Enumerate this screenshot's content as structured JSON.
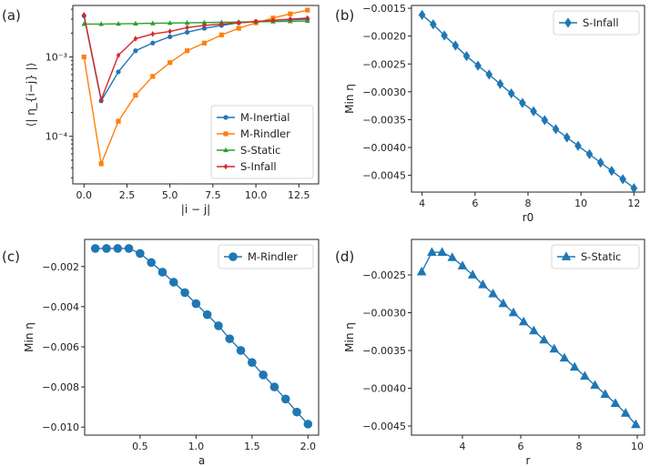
{
  "chart_data": [
    {
      "id": "a",
      "panel_label": "(a)",
      "type": "line",
      "yscale": "log",
      "xlabel": "|i − j|",
      "ylabel": "⟨| η_{i−j} |⟩",
      "xlim": [
        -0.65,
        13.65
      ],
      "ylim_log10": [
        -4.6,
        -2.35
      ],
      "xticks": [
        0.0,
        2.5,
        5.0,
        7.5,
        10.0,
        12.5
      ],
      "xtick_labels": [
        "0.0",
        "2.5",
        "5.0",
        "7.5",
        "10.0",
        "12.5"
      ],
      "yticks_log10": [
        -4,
        -3
      ],
      "ytick_labels": [
        "10⁻⁴",
        "10⁻³"
      ],
      "legend_loc": "lower-right",
      "x": [
        0,
        1,
        2,
        3,
        4,
        5,
        6,
        7,
        8,
        9,
        10,
        11,
        12,
        13
      ],
      "series": [
        {
          "name": "M-Inertial",
          "color": "#1f77b4",
          "marker": "circle",
          "values": [
            0.0033,
            0.00028,
            0.00065,
            0.0012,
            0.0015,
            0.0018,
            0.00205,
            0.0023,
            0.0025,
            0.0027,
            0.0028,
            0.0029,
            0.00295,
            0.003
          ]
        },
        {
          "name": "M-Rindler",
          "color": "#ff7f0e",
          "marker": "square",
          "values": [
            0.001,
            4.5e-05,
            0.000155,
            0.00033,
            0.00057,
            0.00085,
            0.0012,
            0.0015,
            0.0019,
            0.0023,
            0.0027,
            0.0031,
            0.0035,
            0.0039
          ]
        },
        {
          "name": "S-Static",
          "color": "#2ca02c",
          "marker": "triangle",
          "values": [
            0.0026,
            0.0026,
            0.00262,
            0.00264,
            0.00266,
            0.00268,
            0.0027,
            0.00272,
            0.00274,
            0.00276,
            0.00278,
            0.0028,
            0.00282,
            0.00285
          ]
        },
        {
          "name": "S-Infall",
          "color": "#d62728",
          "marker": "diamond",
          "values": [
            0.0034,
            0.00029,
            0.00105,
            0.0017,
            0.00195,
            0.0021,
            0.00235,
            0.0025,
            0.0026,
            0.0027,
            0.0028,
            0.0029,
            0.003,
            0.0031
          ]
        }
      ]
    },
    {
      "id": "b",
      "panel_label": "(b)",
      "type": "line",
      "xlabel": "r0",
      "ylabel": "Min η",
      "xlim": [
        3.6,
        12.4
      ],
      "ylim": [
        -0.0048,
        -0.00145
      ],
      "xticks": [
        4,
        6,
        8,
        10,
        12
      ],
      "xtick_labels": [
        "4",
        "6",
        "8",
        "10",
        "12"
      ],
      "yticks": [
        -0.0045,
        -0.004,
        -0.0035,
        -0.003,
        -0.0025,
        -0.002,
        -0.0015
      ],
      "ytick_labels": [
        "−0.0045",
        "−0.0040",
        "−0.0035",
        "−0.0030",
        "−0.0025",
        "−0.0020",
        "−0.0015"
      ],
      "legend_loc": "upper-right",
      "series": [
        {
          "name": "S-Infall",
          "color": "#1f77b4",
          "marker": "diamond",
          "x": [
            4.0,
            4.42,
            4.84,
            5.26,
            5.68,
            6.11,
            6.53,
            6.95,
            7.37,
            7.79,
            8.21,
            8.63,
            9.05,
            9.47,
            9.89,
            10.32,
            10.74,
            11.16,
            11.58,
            12.0
          ],
          "values": [
            -0.00162,
            -0.00179,
            -0.00199,
            -0.00217,
            -0.00236,
            -0.00253,
            -0.00269,
            -0.00286,
            -0.00303,
            -0.0032,
            -0.00335,
            -0.00351,
            -0.00367,
            -0.00382,
            -0.00397,
            -0.00412,
            -0.00427,
            -0.00442,
            -0.00457,
            -0.00473
          ]
        }
      ]
    },
    {
      "id": "c",
      "panel_label": "(c)",
      "type": "line",
      "xlabel": "a",
      "ylabel": "Min η",
      "xlim": [
        0.005,
        2.095
      ],
      "ylim": [
        -0.0104,
        -0.00065
      ],
      "xticks": [
        0.5,
        1.0,
        1.5,
        2.0
      ],
      "xtick_labels": [
        "0.5",
        "1.0",
        "1.5",
        "2.0"
      ],
      "yticks": [
        -0.01,
        -0.008,
        -0.006,
        -0.004,
        -0.002
      ],
      "ytick_labels": [
        "−0.010",
        "−0.008",
        "−0.006",
        "−0.004",
        "−0.002"
      ],
      "legend_loc": "upper-right",
      "series": [
        {
          "name": "M-Rindler",
          "color": "#1f77b4",
          "marker": "circle",
          "x": [
            0.1,
            0.2,
            0.3,
            0.4,
            0.5,
            0.6,
            0.7,
            0.8,
            0.9,
            1.0,
            1.1,
            1.2,
            1.3,
            1.4,
            1.5,
            1.6,
            1.7,
            1.8,
            1.9,
            2.0
          ],
          "values": [
            -0.0011,
            -0.0011,
            -0.0011,
            -0.0011,
            -0.00135,
            -0.0018,
            -0.00228,
            -0.00278,
            -0.0033,
            -0.00385,
            -0.0044,
            -0.00495,
            -0.0056,
            -0.00618,
            -0.00678,
            -0.0074,
            -0.008,
            -0.0086,
            -0.00925,
            -0.00985
          ]
        }
      ]
    },
    {
      "id": "d",
      "panel_label": "(d)",
      "type": "line",
      "xlabel": "r",
      "ylabel": "Min η",
      "xlim": [
        2.25,
        10.25
      ],
      "ylim": [
        -0.00462,
        -0.00203
      ],
      "xticks": [
        4,
        6,
        8,
        10
      ],
      "xtick_labels": [
        "4",
        "6",
        "8",
        "10"
      ],
      "yticks": [
        -0.0045,
        -0.004,
        -0.0035,
        -0.003,
        -0.0025
      ],
      "ytick_labels": [
        "−0.0045",
        "−0.0040",
        "−0.0035",
        "−0.0030",
        "−0.0025"
      ],
      "legend_loc": "upper-right",
      "series": [
        {
          "name": "S-Static",
          "color": "#1f77b4",
          "marker": "triangle",
          "x": [
            2.6,
            2.95,
            3.3,
            3.65,
            4.0,
            4.35,
            4.7,
            5.05,
            5.4,
            5.75,
            6.1,
            6.45,
            6.8,
            7.15,
            7.5,
            7.85,
            8.2,
            8.55,
            8.9,
            9.25,
            9.6,
            9.95
          ],
          "values": [
            -0.00246,
            -0.0022,
            -0.0022,
            -0.00227,
            -0.00238,
            -0.0025,
            -0.00263,
            -0.00275,
            -0.00288,
            -0.003,
            -0.00312,
            -0.00324,
            -0.00336,
            -0.00348,
            -0.0036,
            -0.00372,
            -0.00384,
            -0.00396,
            -0.00408,
            -0.0042,
            -0.00433,
            -0.00448
          ]
        }
      ]
    }
  ]
}
